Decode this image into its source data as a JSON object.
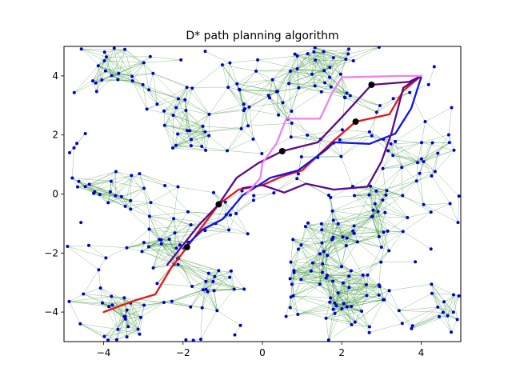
{
  "chart_data": {
    "type": "scatter",
    "title": "D* path planning algorithm",
    "xlabel": "",
    "ylabel": "",
    "xlim": [
      -5,
      5
    ],
    "ylim": [
      -5,
      5
    ],
    "xticks": [
      -4,
      -2,
      0,
      2,
      4
    ],
    "yticks": [
      -4,
      -2,
      0,
      2,
      4
    ],
    "tick_labels": {
      "x": [
        "−4",
        "−2",
        "0",
        "2",
        "4"
      ],
      "y": [
        "−4",
        "−2",
        "0",
        "2",
        "4"
      ]
    },
    "grid": false,
    "legend": "none",
    "node_color": "#0000cc",
    "edge_color": "#2e8b2e",
    "waypoints": [
      {
        "x": -1.1,
        "y": -0.35
      },
      {
        "x": -1.9,
        "y": -1.8
      },
      {
        "x": 0.5,
        "y": 1.45
      },
      {
        "x": 2.35,
        "y": 2.45
      },
      {
        "x": 2.75,
        "y": 3.7
      }
    ],
    "waypoint_color": "#000000",
    "series": [
      {
        "color": "#ee1111",
        "points": [
          [
            -4.0,
            -4.0
          ],
          [
            -3.2,
            -3.6
          ],
          [
            -2.7,
            -3.4
          ],
          [
            -2.3,
            -2.5
          ],
          [
            -1.9,
            -1.8
          ],
          [
            -1.1,
            -0.35
          ],
          [
            -0.6,
            0.15
          ],
          [
            0.0,
            0.3
          ],
          [
            0.5,
            0.6
          ],
          [
            1.0,
            0.8
          ],
          [
            1.75,
            1.75
          ],
          [
            2.35,
            2.45
          ],
          [
            3.2,
            2.7
          ],
          [
            3.55,
            3.5
          ],
          [
            4.0,
            4.0
          ]
        ]
      },
      {
        "color": "#1111ee",
        "points": [
          [
            -2.0,
            -1.85
          ],
          [
            -1.5,
            -1.2
          ],
          [
            -1.0,
            -0.85
          ],
          [
            -0.5,
            -0.05
          ],
          [
            0.2,
            0.55
          ],
          [
            0.9,
            0.8
          ],
          [
            1.6,
            1.5
          ],
          [
            1.8,
            1.75
          ],
          [
            2.7,
            1.7
          ],
          [
            3.35,
            2.05
          ],
          [
            3.75,
            2.9
          ],
          [
            4.0,
            3.95
          ]
        ]
      },
      {
        "color": "#5a0a8c",
        "points": [
          [
            -2.4,
            -2.4
          ],
          [
            -1.6,
            -1.05
          ],
          [
            -1.1,
            -0.35
          ],
          [
            -0.65,
            0.55
          ],
          [
            -0.1,
            1.05
          ],
          [
            0.5,
            1.45
          ],
          [
            1.4,
            1.75
          ],
          [
            2.0,
            2.6
          ],
          [
            2.75,
            3.7
          ],
          [
            3.7,
            3.8
          ],
          [
            4.0,
            4.0
          ]
        ]
      },
      {
        "color": "#5a0a8c",
        "points": [
          [
            -0.5,
            0.2
          ],
          [
            0.0,
            0.3
          ],
          [
            0.55,
            0.05
          ],
          [
            1.1,
            0.35
          ],
          [
            1.8,
            0.15
          ],
          [
            2.65,
            0.25
          ],
          [
            3.0,
            1.1
          ],
          [
            3.25,
            2.05
          ],
          [
            3.55,
            3.6
          ],
          [
            4.0,
            4.0
          ]
        ]
      },
      {
        "color": "#ee82ee",
        "points": [
          [
            -0.4,
            0.0
          ],
          [
            -0.05,
            0.55
          ],
          [
            0.0,
            1.05
          ],
          [
            0.35,
            1.7
          ],
          [
            0.6,
            2.55
          ],
          [
            1.45,
            2.55
          ],
          [
            1.75,
            3.4
          ],
          [
            2.0,
            3.95
          ],
          [
            3.5,
            4.0
          ],
          [
            4.0,
            4.0
          ]
        ]
      }
    ]
  }
}
